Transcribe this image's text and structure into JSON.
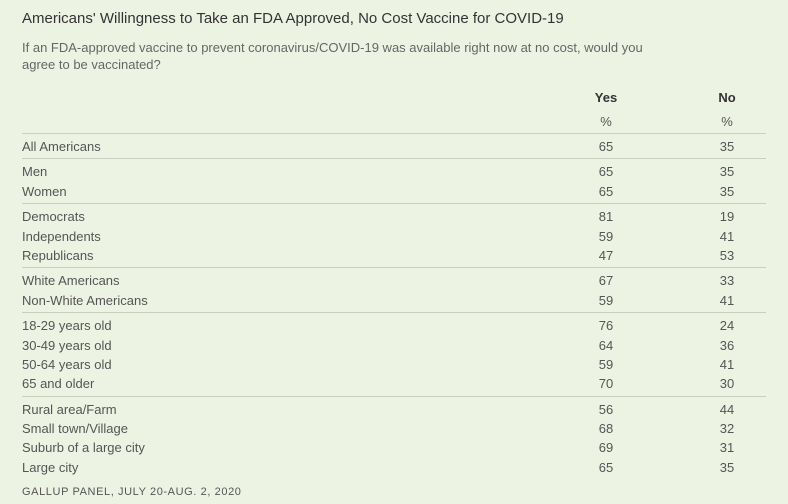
{
  "title": "Americans' Willingness to Take an FDA Approved, No Cost Vaccine for COVID-19",
  "question": "If an FDA-approved vaccine to prevent coronavirus/COVID-19 was available right now at no cost, would you agree to be vaccinated?",
  "columns": {
    "yes": "Yes",
    "no": "No",
    "unit_yes": "%",
    "unit_no": "%"
  },
  "groups": [
    [
      {
        "label": "All Americans",
        "yes": "65",
        "no": "35"
      }
    ],
    [
      {
        "label": "Men",
        "yes": "65",
        "no": "35"
      },
      {
        "label": "Women",
        "yes": "65",
        "no": "35"
      }
    ],
    [
      {
        "label": "Democrats",
        "yes": "81",
        "no": "19"
      },
      {
        "label": "Independents",
        "yes": "59",
        "no": "41"
      },
      {
        "label": "Republicans",
        "yes": "47",
        "no": "53"
      }
    ],
    [
      {
        "label": "White Americans",
        "yes": "67",
        "no": "33"
      },
      {
        "label": "Non-White Americans",
        "yes": "59",
        "no": "41"
      }
    ],
    [
      {
        "label": "18-29 years old",
        "yes": "76",
        "no": "24"
      },
      {
        "label": "30-49 years old",
        "yes": "64",
        "no": "36"
      },
      {
        "label": "50-64 years old",
        "yes": "59",
        "no": "41"
      },
      {
        "label": "65 and older",
        "yes": "70",
        "no": "30"
      }
    ],
    [
      {
        "label": "Rural area/Farm",
        "yes": "56",
        "no": "44"
      },
      {
        "label": "Small town/Village",
        "yes": "68",
        "no": "32"
      },
      {
        "label": "Suburb of a large city",
        "yes": "69",
        "no": "31"
      },
      {
        "label": "Large city",
        "yes": "65",
        "no": "35"
      }
    ]
  ],
  "footer": "GALLUP PANEL, JULY 20-AUG. 2, 2020"
}
